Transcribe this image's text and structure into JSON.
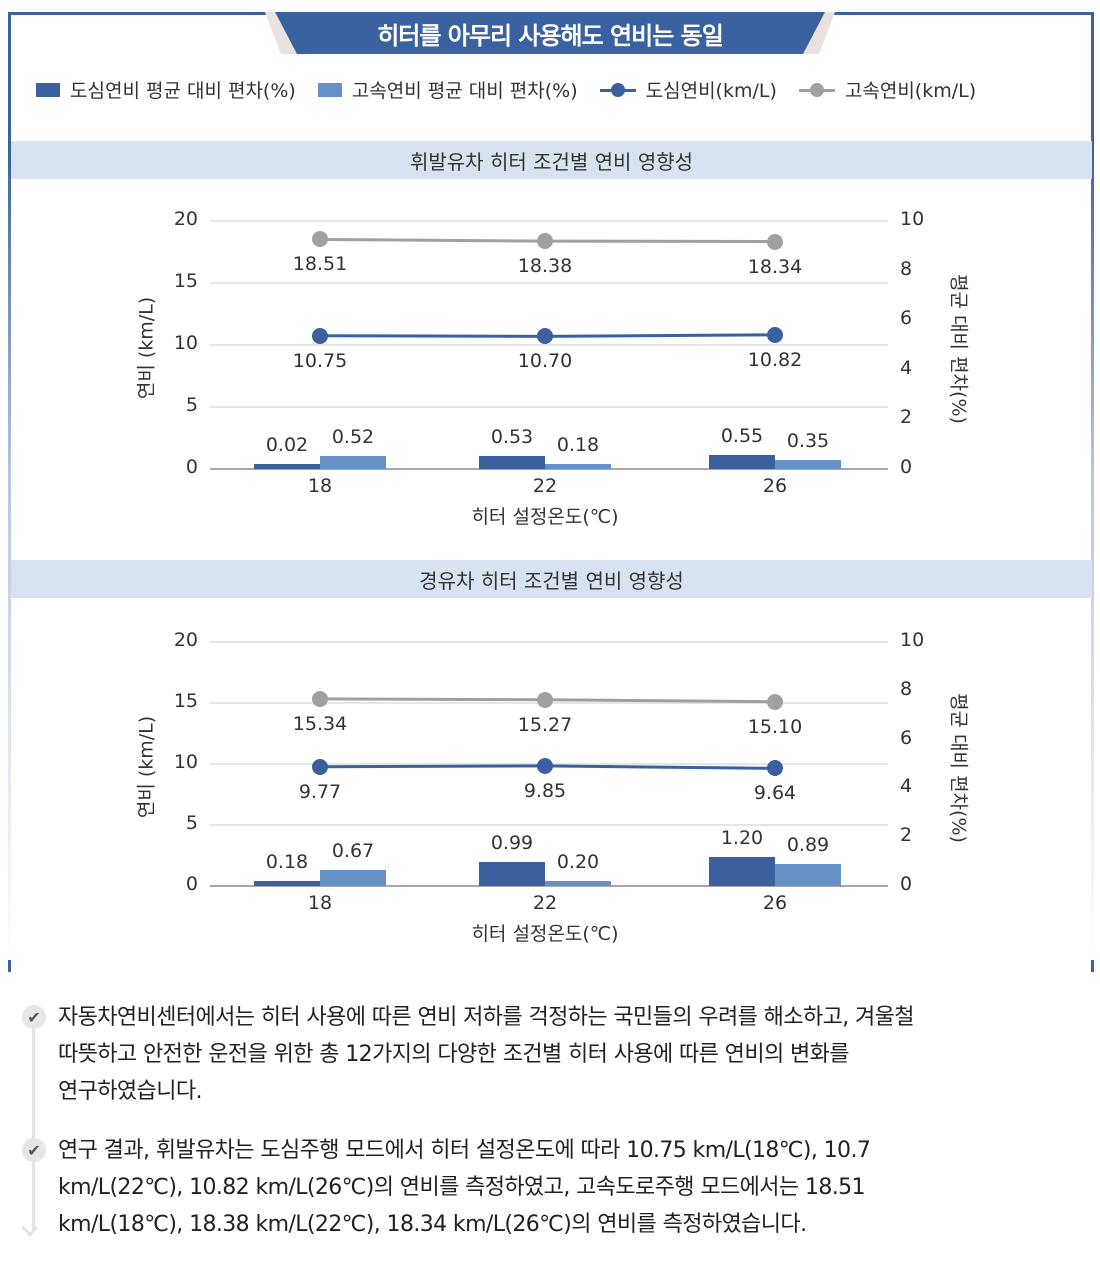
{
  "banner": {
    "title": "히터를 아무리 사용해도 연비는 동일"
  },
  "legend": [
    {
      "label": "도심연비 평균 대비 편차(%)",
      "type": "bar",
      "color": "#3a609e"
    },
    {
      "label": "고속연비 평균 대비 편차(%)",
      "type": "bar",
      "color": "#6690c8"
    },
    {
      "label": "도심연비(km/L)",
      "type": "line",
      "color": "#3a609e"
    },
    {
      "label": "고속연비(km/L)",
      "type": "line",
      "color": "#a0a0a0"
    }
  ],
  "sections": [
    {
      "title": "휘발유차 히터 조건별 연비 영향성"
    },
    {
      "title": "경유차 히터 조건별 연비 영향성"
    }
  ],
  "axes": {
    "left_ticks": [
      "0",
      "5",
      "10",
      "15",
      "20"
    ],
    "right_ticks": [
      "0",
      "2",
      "4",
      "6",
      "8",
      "10"
    ],
    "ylabel_left": "연비 (km/L)",
    "ylabel_right": "평균 대비 편차(%)",
    "xlabel": "히터 설정온도(℃)"
  },
  "chart_data": [
    {
      "type": "bar+line",
      "title": "휘발유차 히터 조건별 연비 영향성",
      "categories": [
        "18",
        "22",
        "26"
      ],
      "xlabel": "히터 설정온도(℃)",
      "ylabel": "연비 (km/L)",
      "ylabel_right": "평균 대비 편차(%)",
      "ylim": [
        0,
        20
      ],
      "ylim_right": [
        0,
        10
      ],
      "grid": true,
      "legend_position": "top",
      "series": [
        {
          "name": "도심연비 평균 대비 편차(%)",
          "type": "bar",
          "axis": "right",
          "values": [
            0.02,
            0.53,
            0.55
          ],
          "labels": [
            "0.02",
            "0.53",
            "0.55"
          ]
        },
        {
          "name": "고속연비 평균 대비 편차(%)",
          "type": "bar",
          "axis": "right",
          "values": [
            0.52,
            0.18,
            0.35
          ],
          "labels": [
            "0.52",
            "0.18",
            "0.35"
          ]
        },
        {
          "name": "도심연비(km/L)",
          "type": "line",
          "axis": "left",
          "values": [
            10.75,
            10.7,
            10.82
          ],
          "labels": [
            "10.75",
            "10.70",
            "10.82"
          ]
        },
        {
          "name": "고속연비(km/L)",
          "type": "line",
          "axis": "left",
          "values": [
            18.51,
            18.38,
            18.34
          ],
          "labels": [
            "18.51",
            "18.38",
            "18.34"
          ]
        }
      ]
    },
    {
      "type": "bar+line",
      "title": "경유차 히터 조건별 연비 영향성",
      "categories": [
        "18",
        "22",
        "26"
      ],
      "xlabel": "히터 설정온도(℃)",
      "ylabel": "연비 (km/L)",
      "ylabel_right": "평균 대비 편차(%)",
      "ylim": [
        0,
        20
      ],
      "ylim_right": [
        0,
        10
      ],
      "grid": true,
      "legend_position": "top",
      "series": [
        {
          "name": "도심연비 평균 대비 편차(%)",
          "type": "bar",
          "axis": "right",
          "values": [
            0.18,
            0.99,
            1.2
          ],
          "labels": [
            "0.18",
            "0.99",
            "1.20"
          ]
        },
        {
          "name": "고속연비 평균 대비 편차(%)",
          "type": "bar",
          "axis": "right",
          "values": [
            0.67,
            0.2,
            0.89
          ],
          "labels": [
            "0.67",
            "0.20",
            "0.89"
          ]
        },
        {
          "name": "도심연비(km/L)",
          "type": "line",
          "axis": "left",
          "values": [
            9.77,
            9.85,
            9.64
          ],
          "labels": [
            "9.77",
            "9.85",
            "9.64"
          ]
        },
        {
          "name": "고속연비(km/L)",
          "type": "line",
          "axis": "left",
          "values": [
            15.34,
            15.27,
            15.1
          ],
          "labels": [
            "15.34",
            "15.27",
            "15.10"
          ]
        }
      ]
    }
  ],
  "notes": [
    {
      "lines": [
        "자동차연비센터에서는 히터 사용에 따른 연비 저하를 걱정하는 국민들의 우려를 해소하고, 겨울철",
        "따뜻하고 안전한 운전을 위한 총 12가지의 다양한 조건별 히터 사용에 따른 연비의 변화를",
        "연구하였습니다."
      ]
    },
    {
      "lines": [
        "연구 결과, 휘발유차는 도심주행 모드에서 히터 설정온도에 따라 10.75 km/L(18℃), 10.7",
        "km/L(22℃), 10.82 km/L(26℃)의 연비를 측정하였고, 고속도로주행 모드에서는 18.51",
        "km/L(18℃), 18.38 km/L(22℃), 18.34 km/L(26℃)의 연비를 측정하였습니다."
      ]
    }
  ],
  "icons": {
    "check": "✔"
  }
}
